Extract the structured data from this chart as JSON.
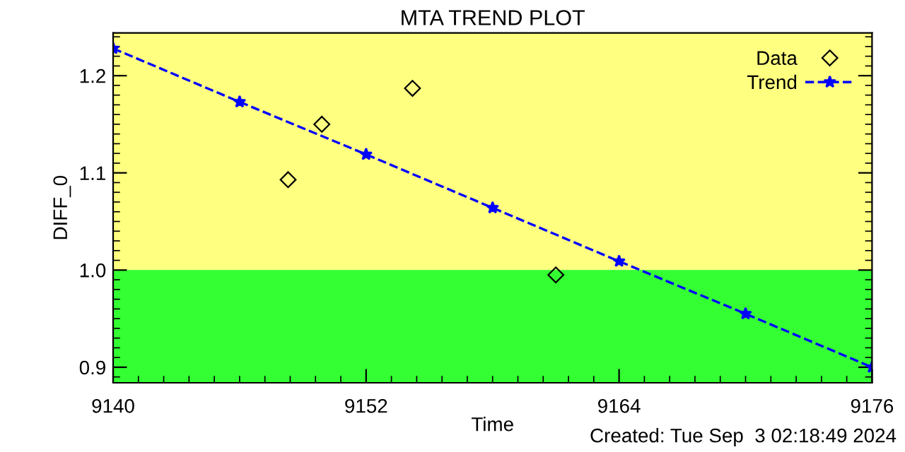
{
  "chart_data": {
    "type": "scatter",
    "title": "MTA TREND PLOT",
    "xlabel": "Time",
    "ylabel": "DIFF_0",
    "annotations": [
      "Created: Tue Sep  3 02:18:49 2024"
    ],
    "series": [
      {
        "name": "Data",
        "type": "scatter",
        "color": "#000000",
        "marker": "diamond",
        "x": [
          9148.3,
          9149.9,
          9154.2,
          9161.0
        ],
        "values": [
          1.093,
          1.15,
          1.187,
          0.995
        ]
      },
      {
        "name": "Trend",
        "type": "line",
        "color": "#0000ff",
        "marker": "star",
        "line_style": "dashed",
        "x": [
          9140,
          9146,
          9152,
          9158,
          9164,
          9170,
          9176
        ],
        "values": [
          1.228,
          1.173,
          1.119,
          1.064,
          1.009,
          0.955,
          0.9
        ]
      }
    ],
    "bands": [
      {
        "axis": "y",
        "from": 1.0,
        "to": 1.244,
        "color": "#ffff80"
      },
      {
        "axis": "y",
        "from": 0.884,
        "to": 1.0,
        "color": "#33ff33"
      }
    ],
    "xlim": [
      9140,
      9176
    ],
    "xticks": [
      9140,
      9152,
      9164,
      9176
    ],
    "ylim": [
      0.884,
      1.244
    ],
    "yticks": [
      {
        "value": 0.9,
        "label": "0.9"
      },
      {
        "value": 1.0,
        "label": "1.0"
      },
      {
        "value": 1.1,
        "label": "1.1"
      },
      {
        "value": 1.2,
        "label": "1.2"
      }
    ],
    "grid": false,
    "legend": "top right"
  }
}
